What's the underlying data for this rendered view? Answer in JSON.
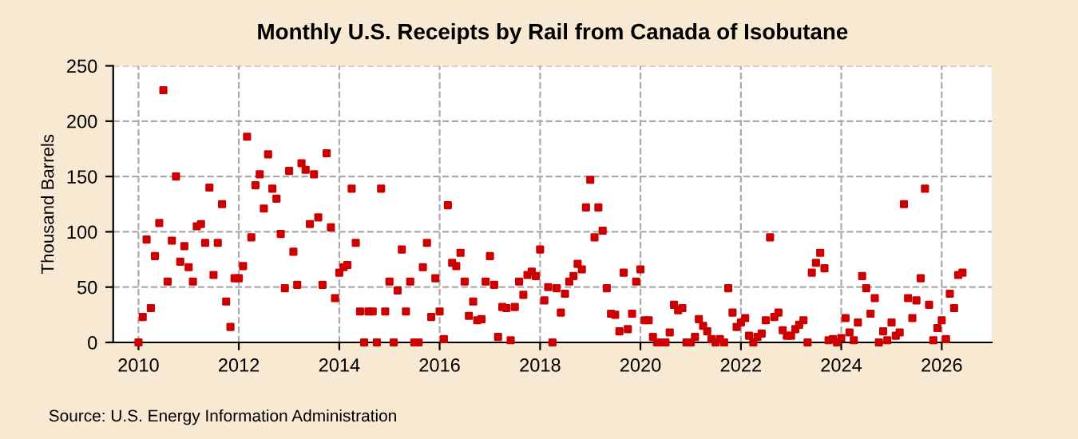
{
  "chart_data": {
    "type": "scatter",
    "title": "Monthly U.S. Receipts by Rail from Canada of Isobutane",
    "ylabel": "Thousand Barrels",
    "annotations": [
      "Source: U.S. Energy Information Administration"
    ],
    "x": [
      "2010-01",
      "2010-02",
      "2010-03",
      "2010-04",
      "2010-05",
      "2010-06",
      "2010-07",
      "2010-08",
      "2010-09",
      "2010-10",
      "2010-11",
      "2010-12",
      "2011-01",
      "2011-02",
      "2011-03",
      "2011-04",
      "2011-05",
      "2011-06",
      "2011-07",
      "2011-08",
      "2011-09",
      "2011-10",
      "2011-11",
      "2011-12",
      "2012-01",
      "2012-02",
      "2012-03",
      "2012-04",
      "2012-05",
      "2012-06",
      "2012-07",
      "2012-08",
      "2012-09",
      "2012-10",
      "2012-11",
      "2012-12",
      "2013-01",
      "2013-02",
      "2013-03",
      "2013-04",
      "2013-05",
      "2013-06",
      "2013-07",
      "2013-08",
      "2013-09",
      "2013-10",
      "2013-11",
      "2013-12",
      "2014-01",
      "2014-02",
      "2014-03",
      "2014-04",
      "2014-05",
      "2014-06",
      "2014-07",
      "2014-08",
      "2014-09",
      "2014-10",
      "2014-11",
      "2014-12",
      "2015-01",
      "2015-02",
      "2015-03",
      "2015-04",
      "2015-05",
      "2015-06",
      "2015-07",
      "2015-08",
      "2015-09",
      "2015-10",
      "2015-11",
      "2015-12",
      "2016-01",
      "2016-02",
      "2016-03",
      "2016-04",
      "2016-05",
      "2016-06",
      "2016-07",
      "2016-08",
      "2016-09",
      "2016-10",
      "2016-11",
      "2016-12",
      "2017-01",
      "2017-02",
      "2017-03",
      "2017-04",
      "2017-05",
      "2017-06",
      "2017-07",
      "2017-08",
      "2017-09",
      "2017-10",
      "2017-11",
      "2017-12",
      "2018-01",
      "2018-02",
      "2018-03",
      "2018-04",
      "2018-05",
      "2018-06",
      "2018-07",
      "2018-08",
      "2018-09",
      "2018-10",
      "2018-11",
      "2018-12",
      "2019-01",
      "2019-02",
      "2019-03",
      "2019-04",
      "2019-05",
      "2019-06",
      "2019-07",
      "2019-08",
      "2019-09",
      "2019-10",
      "2019-11",
      "2019-12",
      "2020-01",
      "2020-02",
      "2020-03",
      "2020-04",
      "2020-05",
      "2020-06",
      "2020-07",
      "2020-08",
      "2020-09",
      "2020-10",
      "2020-11",
      "2020-12",
      "2021-01",
      "2021-02",
      "2021-03",
      "2021-04",
      "2021-05",
      "2021-06",
      "2021-07",
      "2021-08",
      "2021-09",
      "2021-10",
      "2021-11",
      "2021-12",
      "2022-01",
      "2022-02",
      "2022-03",
      "2022-04",
      "2022-05",
      "2022-06",
      "2022-07",
      "2022-08",
      "2022-09",
      "2022-10",
      "2022-11",
      "2022-12",
      "2023-01",
      "2023-02",
      "2023-03",
      "2023-04",
      "2023-05",
      "2023-06",
      "2023-07",
      "2023-08",
      "2023-09",
      "2023-10",
      "2023-11",
      "2023-12",
      "2024-01",
      "2024-02",
      "2024-03",
      "2024-04",
      "2024-05",
      "2024-06",
      "2024-07",
      "2024-08",
      "2024-09",
      "2024-10",
      "2024-11",
      "2024-12",
      "2025-01",
      "2025-02",
      "2025-03",
      "2025-04",
      "2025-05",
      "2025-06",
      "2025-07",
      "2025-08",
      "2025-09",
      "2025-10",
      "2025-11",
      "2025-12",
      "2026-01",
      "2026-02",
      "2026-03",
      "2026-04",
      "2026-05",
      "2026-06"
    ],
    "values": [
      0,
      23,
      93,
      31,
      78,
      108,
      228,
      55,
      92,
      150,
      73,
      87,
      68,
      55,
      105,
      107,
      90,
      140,
      61,
      90,
      125,
      37,
      14,
      58,
      58,
      69,
      186,
      95,
      142,
      152,
      121,
      170,
      139,
      130,
      98,
      49,
      155,
      82,
      52,
      162,
      156,
      107,
      152,
      113,
      52,
      171,
      104,
      40,
      63,
      68,
      70,
      139,
      90,
      28,
      0,
      28,
      28,
      0,
      139,
      28,
      55,
      0,
      47,
      84,
      28,
      55,
      0,
      0,
      68,
      90,
      23,
      58,
      28,
      3,
      124,
      72,
      69,
      81,
      55,
      24,
      37,
      20,
      21,
      55,
      78,
      52,
      5,
      32,
      31,
      2,
      32,
      55,
      43,
      61,
      64,
      60,
      84,
      38,
      50,
      0,
      49,
      27,
      44,
      55,
      60,
      71,
      66,
      122,
      147,
      95,
      122,
      101,
      49,
      26,
      25,
      10,
      63,
      12,
      26,
      55,
      66,
      20,
      20,
      5,
      0,
      0,
      0,
      9,
      34,
      29,
      31,
      0,
      0,
      5,
      21,
      15,
      10,
      3,
      0,
      3,
      0,
      49,
      27,
      14,
      18,
      22,
      6,
      0,
      5,
      8,
      20,
      95,
      23,
      27,
      11,
      6,
      6,
      12,
      16,
      20,
      0,
      63,
      72,
      81,
      67,
      2,
      3,
      0,
      4,
      22,
      9,
      2,
      18,
      60,
      49,
      26,
      40,
      0,
      10,
      2,
      18,
      6,
      9,
      125,
      40,
      22,
      38,
      58,
      139,
      34,
      2,
      13,
      20,
      3,
      44,
      31,
      61,
      63
    ],
    "color": "#cc0000",
    "marker": "square",
    "grid": true,
    "xlim": [
      "2009-07",
      "2026-12-31"
    ],
    "xticks": [
      {
        "value": "2010",
        "label": "2010"
      },
      {
        "value": "2012",
        "label": "2012"
      },
      {
        "value": "2014",
        "label": "2014"
      },
      {
        "value": "2016",
        "label": "2016"
      },
      {
        "value": "2018",
        "label": "2018"
      },
      {
        "value": "2020",
        "label": "2020"
      },
      {
        "value": "2022",
        "label": "2022"
      },
      {
        "value": "2024",
        "label": "2024"
      },
      {
        "value": "2026",
        "label": "2026"
      }
    ],
    "ylim": [
      0,
      250
    ],
    "yticks": [
      0,
      50,
      100,
      150,
      200,
      250
    ]
  }
}
